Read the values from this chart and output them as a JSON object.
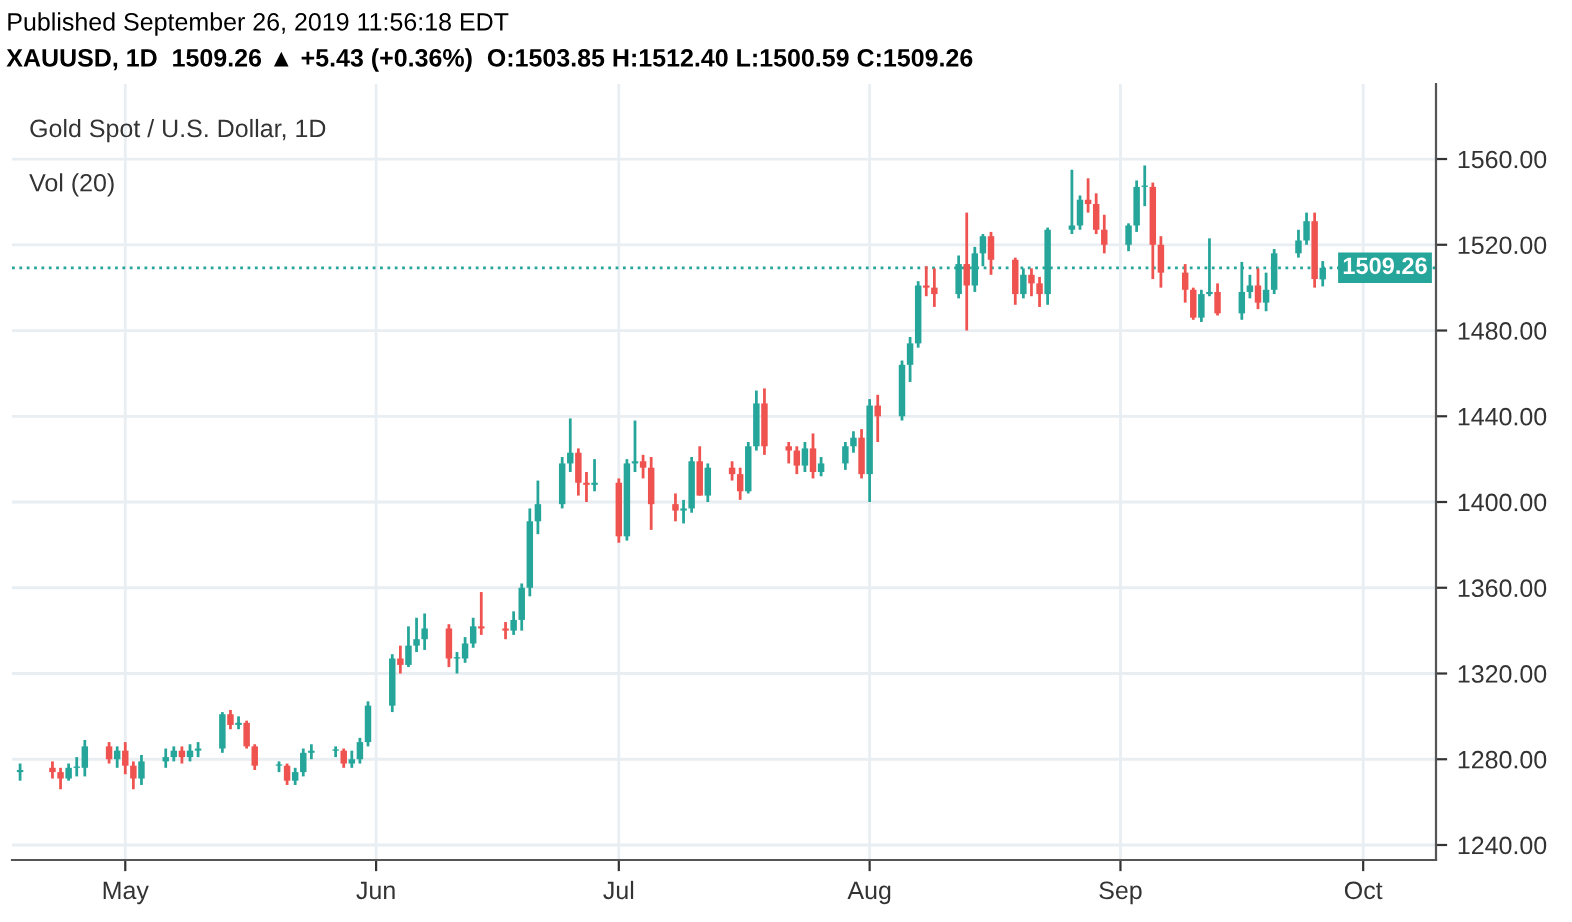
{
  "chart_data": {
    "type": "candlestick",
    "title": "Gold Spot / U.S. Dollar, 1D",
    "annotations": [
      "Published September 26, 2019 11:56:18 EDT",
      "XAUUSD, 1D  1509.26 ▲ +5.43 (+0.36%)  O:1503.85 H:1512.40 L:1500.59 C:1509.26",
      "Vol (20)"
    ],
    "x": [
      "2019-04-18",
      "2019-04-22",
      "2019-04-23",
      "2019-04-24",
      "2019-04-25",
      "2019-04-26",
      "2019-04-29",
      "2019-04-30",
      "2019-05-01",
      "2019-05-02",
      "2019-05-03",
      "2019-05-06",
      "2019-05-07",
      "2019-05-08",
      "2019-05-09",
      "2019-05-10",
      "2019-05-13",
      "2019-05-14",
      "2019-05-15",
      "2019-05-16",
      "2019-05-17",
      "2019-05-20",
      "2019-05-21",
      "2019-05-22",
      "2019-05-23",
      "2019-05-24",
      "2019-05-27",
      "2019-05-28",
      "2019-05-29",
      "2019-05-30",
      "2019-05-31",
      "2019-06-03",
      "2019-06-04",
      "2019-06-05",
      "2019-06-06",
      "2019-06-07",
      "2019-06-10",
      "2019-06-11",
      "2019-06-12",
      "2019-06-13",
      "2019-06-14",
      "2019-06-17",
      "2019-06-18",
      "2019-06-19",
      "2019-06-20",
      "2019-06-21",
      "2019-06-24",
      "2019-06-25",
      "2019-06-26",
      "2019-06-27",
      "2019-06-28",
      "2019-07-01",
      "2019-07-02",
      "2019-07-03",
      "2019-07-04",
      "2019-07-05",
      "2019-07-08",
      "2019-07-09",
      "2019-07-10",
      "2019-07-11",
      "2019-07-12",
      "2019-07-15",
      "2019-07-16",
      "2019-07-17",
      "2019-07-18",
      "2019-07-19",
      "2019-07-22",
      "2019-07-23",
      "2019-07-24",
      "2019-07-25",
      "2019-07-26",
      "2019-07-29",
      "2019-07-30",
      "2019-07-31",
      "2019-08-01",
      "2019-08-02",
      "2019-08-05",
      "2019-08-06",
      "2019-08-07",
      "2019-08-08",
      "2019-08-09",
      "2019-08-12",
      "2019-08-13",
      "2019-08-14",
      "2019-08-15",
      "2019-08-16",
      "2019-08-19",
      "2019-08-20",
      "2019-08-21",
      "2019-08-22",
      "2019-08-23",
      "2019-08-26",
      "2019-08-27",
      "2019-08-28",
      "2019-08-29",
      "2019-08-30",
      "2019-09-02",
      "2019-09-03",
      "2019-09-04",
      "2019-09-05",
      "2019-09-06",
      "2019-09-09",
      "2019-09-10",
      "2019-09-11",
      "2019-09-12",
      "2019-09-13",
      "2019-09-16",
      "2019-09-17",
      "2019-09-18",
      "2019-09-19",
      "2019-09-20",
      "2019-09-23",
      "2019-09-24",
      "2019-09-25",
      "2019-09-26"
    ],
    "ohlc": [
      [
        1274,
        1278,
        1270,
        1275
      ],
      [
        1276,
        1279,
        1271,
        1274
      ],
      [
        1274,
        1276,
        1266,
        1271
      ],
      [
        1271,
        1278,
        1270,
        1276
      ],
      [
        1276,
        1281,
        1272,
        1276
      ],
      [
        1276,
        1289,
        1272,
        1286
      ],
      [
        1286,
        1288,
        1278,
        1280
      ],
      [
        1280,
        1286,
        1276,
        1284
      ],
      [
        1284,
        1288,
        1273,
        1277
      ],
      [
        1277,
        1279,
        1266,
        1271
      ],
      [
        1271,
        1282,
        1268,
        1279
      ],
      [
        1279,
        1285,
        1276,
        1281
      ],
      [
        1281,
        1286,
        1279,
        1284
      ],
      [
        1284,
        1286,
        1278,
        1281
      ],
      [
        1281,
        1287,
        1279,
        1284
      ],
      [
        1284,
        1288,
        1281,
        1285
      ],
      [
        1285,
        1302,
        1283,
        1301
      ],
      [
        1301,
        1303,
        1294,
        1296
      ],
      [
        1296,
        1300,
        1294,
        1297
      ],
      [
        1297,
        1298,
        1285,
        1286
      ],
      [
        1286,
        1287,
        1275,
        1277
      ],
      [
        1277,
        1279,
        1274,
        1277
      ],
      [
        1277,
        1278,
        1268,
        1270
      ],
      [
        1270,
        1276,
        1268,
        1274
      ],
      [
        1274,
        1285,
        1272,
        1283
      ],
      [
        1283,
        1287,
        1280,
        1284
      ],
      [
        1284,
        1286,
        1281,
        1284
      ],
      [
        1284,
        1285,
        1276,
        1278
      ],
      [
        1278,
        1284,
        1276,
        1280
      ],
      [
        1280,
        1290,
        1278,
        1288
      ],
      [
        1288,
        1307,
        1286,
        1305
      ],
      [
        1305,
        1329,
        1302,
        1327
      ],
      [
        1327,
        1333,
        1320,
        1324
      ],
      [
        1324,
        1342,
        1323,
        1333
      ],
      [
        1333,
        1346,
        1330,
        1336
      ],
      [
        1336,
        1348,
        1331,
        1341
      ],
      [
        1341,
        1343,
        1323,
        1327
      ],
      [
        1327,
        1330,
        1320,
        1327
      ],
      [
        1327,
        1337,
        1325,
        1334
      ],
      [
        1334,
        1346,
        1332,
        1342
      ],
      [
        1342,
        1358,
        1338,
        1341
      ],
      [
        1341,
        1344,
        1336,
        1340
      ],
      [
        1340,
        1349,
        1338,
        1345
      ],
      [
        1345,
        1362,
        1340,
        1360
      ],
      [
        1360,
        1397,
        1356,
        1391
      ],
      [
        1391,
        1410,
        1385,
        1399
      ],
      [
        1399,
        1421,
        1397,
        1418
      ],
      [
        1418,
        1439,
        1414,
        1423
      ],
      [
        1423,
        1425,
        1403,
        1409
      ],
      [
        1409,
        1414,
        1400,
        1408
      ],
      [
        1408,
        1420,
        1405,
        1409
      ],
      [
        1409,
        1411,
        1381,
        1384
      ],
      [
        1384,
        1420,
        1382,
        1418
      ],
      [
        1418,
        1438,
        1414,
        1419
      ],
      [
        1419,
        1422,
        1411,
        1416
      ],
      [
        1416,
        1421,
        1387,
        1399
      ],
      [
        1399,
        1404,
        1391,
        1396
      ],
      [
        1396,
        1401,
        1390,
        1397
      ],
      [
        1397,
        1421,
        1395,
        1419
      ],
      [
        1419,
        1426,
        1403,
        1403
      ],
      [
        1403,
        1418,
        1400,
        1416
      ],
      [
        1416,
        1419,
        1410,
        1413
      ],
      [
        1413,
        1416,
        1401,
        1405
      ],
      [
        1405,
        1428,
        1404,
        1426
      ],
      [
        1426,
        1452,
        1424,
        1446
      ],
      [
        1446,
        1453,
        1422,
        1426
      ],
      [
        1426,
        1428,
        1418,
        1424
      ],
      [
        1424,
        1426,
        1413,
        1417
      ],
      [
        1417,
        1428,
        1414,
        1425
      ],
      [
        1425,
        1432,
        1411,
        1414
      ],
      [
        1414,
        1421,
        1412,
        1418
      ],
      [
        1418,
        1428,
        1415,
        1426
      ],
      [
        1426,
        1433,
        1423,
        1430
      ],
      [
        1430,
        1434,
        1411,
        1413
      ],
      [
        1413,
        1448,
        1400,
        1445
      ],
      [
        1445,
        1450,
        1428,
        1440
      ],
      [
        1440,
        1466,
        1438,
        1464
      ],
      [
        1464,
        1477,
        1456,
        1474
      ],
      [
        1474,
        1503,
        1472,
        1501
      ],
      [
        1501,
        1510,
        1496,
        1500
      ],
      [
        1500,
        1509,
        1491,
        1497
      ],
      [
        1497,
        1515,
        1495,
        1511
      ],
      [
        1511,
        1535,
        1480,
        1501
      ],
      [
        1501,
        1519,
        1498,
        1516
      ],
      [
        1516,
        1525,
        1510,
        1524
      ],
      [
        1524,
        1526,
        1506,
        1513
      ],
      [
        1513,
        1514,
        1492,
        1497
      ],
      [
        1497,
        1509,
        1495,
        1506
      ],
      [
        1506,
        1509,
        1496,
        1502
      ],
      [
        1502,
        1505,
        1491,
        1497
      ],
      [
        1497,
        1528,
        1492,
        1527
      ],
      [
        1527,
        1555,
        1525,
        1529
      ],
      [
        1529,
        1543,
        1527,
        1541
      ],
      [
        1541,
        1551,
        1535,
        1539
      ],
      [
        1539,
        1544,
        1525,
        1527
      ],
      [
        1527,
        1534,
        1516,
        1520
      ],
      [
        1520,
        1530,
        1517,
        1529
      ],
      [
        1529,
        1550,
        1526,
        1547
      ],
      [
        1547,
        1557,
        1538,
        1547
      ],
      [
        1547,
        1549,
        1504,
        1520
      ],
      [
        1520,
        1524,
        1500,
        1507
      ],
      [
        1507,
        1511,
        1493,
        1499
      ],
      [
        1499,
        1500,
        1485,
        1486
      ],
      [
        1486,
        1499,
        1484,
        1497
      ],
      [
        1497,
        1523,
        1496,
        1498
      ],
      [
        1498,
        1502,
        1487,
        1488
      ],
      [
        1488,
        1512,
        1485,
        1498
      ],
      [
        1498,
        1506,
        1495,
        1501
      ],
      [
        1501,
        1509,
        1490,
        1493
      ],
      [
        1493,
        1507,
        1489,
        1499
      ],
      [
        1499,
        1518,
        1497,
        1516
      ],
      [
        1516,
        1527,
        1514,
        1522
      ],
      [
        1522,
        1535,
        1520,
        1531
      ],
      [
        1531,
        1535,
        1500,
        1504
      ],
      [
        1503.85,
        1512.4,
        1500.59,
        1509.26
      ]
    ],
    "colors": [
      "#26a69a",
      "#ef5350",
      "#ef5350",
      "#26a69a",
      "#26a69a",
      "#26a69a",
      "#ef5350",
      "#26a69a",
      "#ef5350",
      "#ef5350",
      "#26a69a",
      "#26a69a",
      "#26a69a",
      "#ef5350",
      "#26a69a",
      "#26a69a",
      "#26a69a",
      "#ef5350",
      "#26a69a",
      "#ef5350",
      "#ef5350",
      "#26a69a",
      "#ef5350",
      "#26a69a",
      "#26a69a",
      "#26a69a",
      "#26a69a",
      "#ef5350",
      "#26a69a",
      "#26a69a",
      "#26a69a",
      "#26a69a",
      "#ef5350",
      "#26a69a",
      "#26a69a",
      "#26a69a",
      "#ef5350",
      "#26a69a",
      "#26a69a",
      "#26a69a",
      "#ef5350",
      "#ef5350",
      "#26a69a",
      "#26a69a",
      "#26a69a",
      "#26a69a",
      "#26a69a",
      "#26a69a",
      "#ef5350",
      "#ef5350",
      "#26a69a",
      "#ef5350",
      "#26a69a",
      "#26a69a",
      "#ef5350",
      "#ef5350",
      "#ef5350",
      "#26a69a",
      "#26a69a",
      "#ef5350",
      "#26a69a",
      "#ef5350",
      "#ef5350",
      "#26a69a",
      "#26a69a",
      "#ef5350",
      "#ef5350",
      "#ef5350",
      "#26a69a",
      "#ef5350",
      "#26a69a",
      "#26a69a",
      "#26a69a",
      "#ef5350",
      "#26a69a",
      "#ef5350",
      "#26a69a",
      "#26a69a",
      "#26a69a",
      "#ef5350",
      "#ef5350",
      "#26a69a",
      "#ef5350",
      "#26a69a",
      "#26a69a",
      "#ef5350",
      "#ef5350",
      "#26a69a",
      "#ef5350",
      "#ef5350",
      "#26a69a",
      "#26a69a",
      "#26a69a",
      "#ef5350",
      "#ef5350",
      "#ef5350",
      "#26a69a",
      "#26a69a",
      "#26a69a",
      "#ef5350",
      "#ef5350",
      "#ef5350",
      "#ef5350",
      "#26a69a",
      "#26a69a",
      "#ef5350",
      "#26a69a",
      "#26a69a",
      "#ef5350",
      "#26a69a",
      "#26a69a",
      "#26a69a",
      "#26a69a",
      "#ef5350",
      "#26a69a"
    ],
    "xlim": [
      "2019-04-17",
      "2019-10-10"
    ],
    "xticks": [
      {
        "value": "2019-05-01",
        "label": "May"
      },
      {
        "value": "2019-06-01",
        "label": "Jun"
      },
      {
        "value": "2019-07-01",
        "label": "Jul"
      },
      {
        "value": "2019-08-01",
        "label": "Aug"
      },
      {
        "value": "2019-09-01",
        "label": "Sep"
      },
      {
        "value": "2019-10-01",
        "label": "Oct"
      }
    ],
    "ylim": [
      1233,
      1595
    ],
    "yticks": [
      {
        "value": 1240,
        "label": "1240.00"
      },
      {
        "value": 1280,
        "label": "1280.00"
      },
      {
        "value": 1320,
        "label": "1320.00"
      },
      {
        "value": 1360,
        "label": "1360.00"
      },
      {
        "value": 1400,
        "label": "1400.00"
      },
      {
        "value": 1440,
        "label": "1440.00"
      },
      {
        "value": 1480,
        "label": "1480.00"
      },
      {
        "value": 1520,
        "label": "1520.00"
      },
      {
        "value": 1560,
        "label": "1560.00"
      }
    ],
    "ref_lines": [
      {
        "axis": "y",
        "value": 1509.26,
        "label": "1509.26",
        "color": "#26a69a",
        "line_style": "dotted"
      }
    ],
    "grid": true
  }
}
